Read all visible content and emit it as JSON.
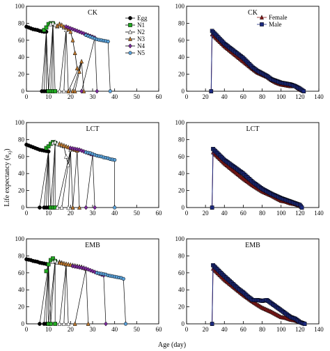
{
  "figure": {
    "ylabel": "Life expectancy (e",
    "ylabel_sub": "xj",
    "ylabel_close": ")",
    "xlabel": "Age (day)"
  },
  "colors": {
    "Egg": "#000000",
    "N1": "#22aa22",
    "N2": "#f2f2a0",
    "N3": "#c07a30",
    "N4": "#7a2a9a",
    "N5": "#5aa0d8",
    "Female": "#8b1a1a",
    "Male": "#1c2a80"
  },
  "chart_data": [
    {
      "type": "line",
      "title": "CK",
      "xlim": [
        0,
        60
      ],
      "ylim": [
        0,
        100
      ],
      "xticks": [
        0,
        10,
        20,
        30,
        40,
        50,
        60
      ],
      "yticks": [
        0,
        20,
        40,
        60,
        80,
        100
      ],
      "legend": "right",
      "series": [
        {
          "name": "Egg",
          "marker": "circle",
          "x": [
            0,
            1,
            2,
            3,
            4,
            5,
            6,
            7,
            8,
            9
          ],
          "y": [
            76,
            75,
            74,
            73,
            72.5,
            72,
            71,
            70.5,
            70,
            70
          ],
          "drop_x": [
            7,
            8,
            9,
            10,
            10
          ]
        },
        {
          "name": "N1",
          "marker": "square",
          "x": [
            8,
            9,
            10,
            11,
            12
          ],
          "y": [
            72,
            75,
            79,
            80,
            80
          ],
          "drop_x": [
            10,
            11,
            12,
            13
          ]
        },
        {
          "name": "N2",
          "marker": "triangle-open",
          "x": [
            11,
            12,
            13,
            14,
            15,
            16,
            17,
            18
          ],
          "y": [
            79,
            80,
            78,
            76,
            79,
            77,
            75,
            72
          ],
          "drop_x": [
            15,
            17,
            19
          ]
        },
        {
          "name": "N3",
          "marker": "triangle",
          "x": [
            14,
            15,
            16,
            17,
            18,
            19,
            20,
            21,
            22,
            23,
            24,
            25
          ],
          "y": [
            77,
            79,
            78,
            76,
            75,
            73,
            70,
            60,
            45,
            27,
            23,
            35
          ],
          "drop_x": [
            19,
            21,
            22,
            26
          ]
        },
        {
          "name": "N4",
          "marker": "diamond",
          "x": [
            18,
            19,
            20,
            21,
            22,
            23,
            24,
            25,
            26,
            27,
            28,
            29,
            30,
            31
          ],
          "y": [
            76,
            75,
            74,
            73,
            72,
            71,
            70,
            69,
            68,
            67,
            66,
            65,
            64,
            63
          ],
          "drop_x": [
            25,
            32
          ]
        },
        {
          "name": "N5",
          "marker": "hexagon",
          "x": [
            27,
            28,
            29,
            30,
            31,
            32,
            33,
            34,
            35,
            36,
            37
          ],
          "y": [
            66,
            65,
            64,
            63,
            62,
            61,
            60.5,
            60,
            59.5,
            59,
            58.5
          ],
          "drop_x": [
            38
          ]
        }
      ]
    },
    {
      "type": "line",
      "title": "CK",
      "xlim": [
        0,
        140
      ],
      "ylim": [
        0,
        100
      ],
      "xticks": [
        0,
        20,
        40,
        60,
        80,
        100,
        120,
        140
      ],
      "yticks": [
        0,
        20,
        40,
        60,
        80,
        100
      ],
      "legend": "top-right",
      "series": [
        {
          "name": "Female",
          "marker": "triangle",
          "x": [
            26,
            27,
            40,
            60,
            70,
            75,
            85,
            90,
            95,
            100,
            105,
            110,
            115,
            120,
            124
          ],
          "y": [
            0,
            67,
            53,
            35,
            26,
            22,
            17,
            13,
            10,
            8,
            7,
            6,
            6,
            2,
            0
          ]
        },
        {
          "name": "Male",
          "marker": "square",
          "x": [
            26,
            27,
            40,
            60,
            70,
            75,
            85,
            90,
            95,
            100,
            105,
            110,
            115,
            120,
            124
          ],
          "y": [
            0,
            71,
            56,
            39,
            28,
            24,
            18,
            14,
            12,
            10,
            9,
            8,
            6,
            3,
            0
          ]
        }
      ]
    },
    {
      "type": "line",
      "title": "LCT",
      "xlim": [
        0,
        60
      ],
      "ylim": [
        0,
        100
      ],
      "xticks": [
        0,
        10,
        20,
        30,
        40,
        50,
        60
      ],
      "yticks": [
        0,
        20,
        40,
        60,
        80,
        100
      ],
      "series": [
        {
          "name": "Egg",
          "marker": "circle",
          "x": [
            0,
            1,
            2,
            3,
            4,
            5,
            6,
            7,
            8,
            9,
            10
          ],
          "y": [
            74,
            73,
            72,
            71,
            70,
            69,
            68,
            67.5,
            67,
            66.5,
            66
          ],
          "drop_x": [
            6,
            8,
            9,
            10,
            11
          ]
        },
        {
          "name": "N1",
          "marker": "square",
          "x": [
            9,
            10,
            11,
            12,
            13
          ],
          "y": [
            70,
            72,
            75,
            77,
            76
          ],
          "drop_x": [
            11,
            12,
            13
          ]
        },
        {
          "name": "N2",
          "marker": "triangle-open",
          "x": [
            12,
            13,
            14,
            15,
            16,
            17,
            18,
            19,
            20
          ],
          "y": [
            76,
            77,
            75,
            74,
            73,
            72,
            60,
            50,
            68
          ],
          "drop_x": [
            14,
            16,
            19,
            21
          ]
        },
        {
          "name": "N3",
          "marker": "triangle",
          "x": [
            15,
            16,
            17,
            18,
            19,
            20,
            21,
            22,
            23
          ],
          "y": [
            75,
            74,
            73,
            72,
            71,
            70,
            69,
            68,
            67
          ],
          "drop_x": [
            21,
            24
          ]
        },
        {
          "name": "N4",
          "marker": "diamond",
          "x": [
            20,
            21,
            22,
            23,
            24,
            25,
            26,
            27,
            28,
            29,
            30
          ],
          "y": [
            70,
            69.5,
            69,
            68.5,
            68,
            67,
            66,
            65,
            64,
            63,
            62
          ],
          "drop_x": [
            27,
            31
          ]
        },
        {
          "name": "N5",
          "marker": "hexagon",
          "x": [
            27,
            28,
            29,
            30,
            31,
            32,
            33,
            34,
            35,
            36,
            37,
            38,
            39,
            40
          ],
          "y": [
            65,
            64.5,
            64,
            63,
            62,
            61,
            60.5,
            60,
            59,
            58.5,
            58,
            57,
            56.5,
            56
          ],
          "drop_x": [
            40
          ]
        }
      ]
    },
    {
      "type": "line",
      "title": "LCT",
      "xlim": [
        0,
        140
      ],
      "ylim": [
        0,
        100
      ],
      "xticks": [
        0,
        20,
        40,
        60,
        80,
        100,
        120,
        140
      ],
      "yticks": [
        0,
        20,
        40,
        60,
        80,
        100
      ],
      "series": [
        {
          "name": "Female",
          "marker": "triangle",
          "x": [
            27,
            28,
            40,
            60,
            70,
            80,
            90,
            100,
            105,
            110,
            115,
            120,
            122
          ],
          "y": [
            0,
            65,
            52,
            34,
            26,
            19,
            14,
            8,
            7,
            5,
            4,
            2,
            0
          ]
        },
        {
          "name": "Male",
          "marker": "square",
          "x": [
            27,
            28,
            40,
            60,
            70,
            80,
            90,
            100,
            105,
            110,
            115,
            120,
            122
          ],
          "y": [
            0,
            69,
            56,
            40,
            30,
            22,
            16,
            11,
            9,
            7,
            5,
            3,
            0
          ]
        }
      ]
    },
    {
      "type": "line",
      "title": "EMB",
      "xlim": [
        0,
        60
      ],
      "ylim": [
        0,
        100
      ],
      "xticks": [
        0,
        10,
        20,
        30,
        40,
        50,
        60
      ],
      "yticks": [
        0,
        20,
        40,
        60,
        80,
        100
      ],
      "series": [
        {
          "name": "Egg",
          "marker": "circle",
          "x": [
            0,
            1,
            2,
            3,
            4,
            5,
            6,
            7,
            8,
            9,
            10
          ],
          "y": [
            76,
            75.5,
            75,
            74,
            73.5,
            73,
            72,
            71.5,
            71,
            70.5,
            70
          ],
          "drop_x": [
            6,
            8,
            9,
            10,
            11
          ]
        },
        {
          "name": "N1",
          "marker": "square",
          "x": [
            9,
            10,
            11,
            12,
            13
          ],
          "y": [
            62,
            70,
            75,
            77,
            74
          ],
          "drop_x": [
            10,
            11,
            13
          ]
        },
        {
          "name": "N2",
          "marker": "triangle-open",
          "x": [
            12,
            13,
            14,
            15,
            16,
            17,
            18
          ],
          "y": [
            73,
            74,
            72,
            73,
            72,
            71,
            70
          ],
          "drop_x": [
            15,
            17,
            19
          ]
        },
        {
          "name": "N3",
          "marker": "triangle",
          "x": [
            15,
            16,
            17,
            18,
            19,
            20,
            21,
            22,
            23,
            24,
            25,
            26,
            27
          ],
          "y": [
            72,
            71.5,
            71,
            70.5,
            70,
            69.5,
            69,
            68.5,
            68,
            67.5,
            67,
            66,
            65
          ],
          "drop_x": [
            22,
            28
          ]
        },
        {
          "name": "N4",
          "marker": "diamond",
          "x": [
            21,
            22,
            23,
            24,
            25,
            26,
            27,
            28,
            29,
            30,
            31,
            32,
            33,
            34,
            35
          ],
          "y": [
            68,
            67.5,
            67,
            66.5,
            66,
            65.5,
            65,
            64,
            63,
            62,
            61,
            60,
            59,
            58,
            57
          ],
          "drop_x": [
            36
          ]
        },
        {
          "name": "N5",
          "marker": "hexagon",
          "x": [
            32,
            33,
            34,
            35,
            36,
            37,
            38,
            39,
            40,
            41,
            42,
            43,
            44
          ],
          "y": [
            60,
            59.5,
            59,
            58.5,
            58,
            57,
            56.5,
            56,
            55.5,
            55,
            54.5,
            54,
            53
          ],
          "drop_x": [
            45
          ]
        }
      ]
    },
    {
      "type": "line",
      "title": "EMB",
      "xlim": [
        0,
        140
      ],
      "ylim": [
        0,
        100
      ],
      "xticks": [
        0,
        20,
        40,
        60,
        80,
        100,
        120,
        140
      ],
      "yticks": [
        0,
        20,
        40,
        60,
        80,
        100
      ],
      "series": [
        {
          "name": "Female",
          "marker": "triangle",
          "x": [
            27,
            28,
            40,
            60,
            70,
            80,
            90,
            100,
            105,
            110,
            115,
            120,
            125
          ],
          "y": [
            0,
            65,
            52,
            34,
            26,
            19,
            14,
            8,
            7,
            5,
            4,
            2,
            0
          ]
        },
        {
          "name": "Male",
          "marker": "square",
          "x": [
            27,
            28,
            40,
            55,
            60,
            65,
            70,
            75,
            80,
            85,
            90,
            95,
            100,
            105,
            110,
            115,
            120,
            125
          ],
          "y": [
            0,
            69,
            56,
            41,
            37,
            32,
            28,
            28,
            27,
            28,
            24,
            20,
            16,
            12,
            8,
            6,
            2,
            0
          ]
        }
      ]
    }
  ]
}
